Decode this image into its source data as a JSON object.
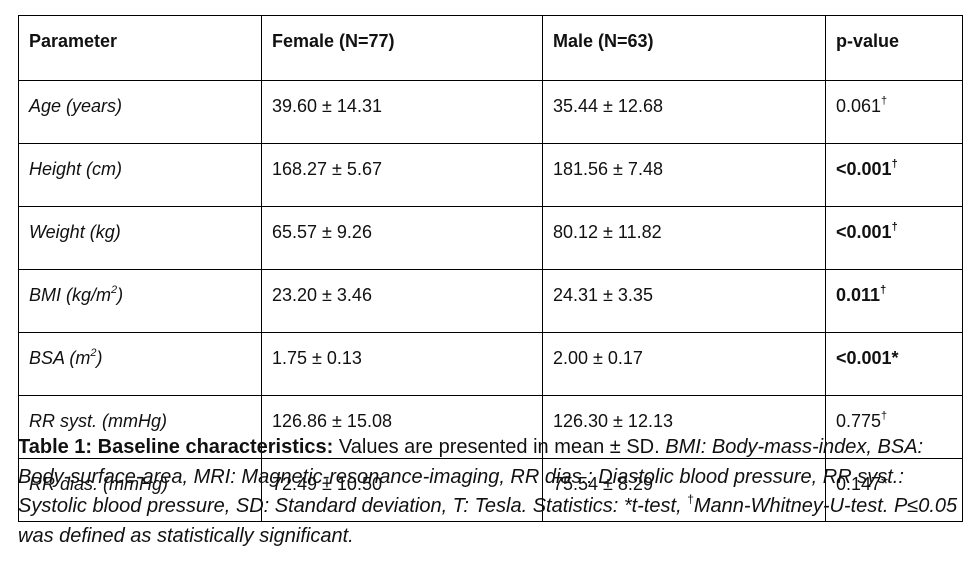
{
  "table": {
    "headers": [
      "Parameter",
      "Female (N=77)",
      "Male (N=63)",
      "p-value"
    ],
    "rows": [
      {
        "param": "Age (years)",
        "param_sup": "",
        "param_end": "",
        "female": "39.60 ± 14.31",
        "male": "35.44 ± 12.68",
        "p": "0.061",
        "p_mark": "†",
        "p_bold": false
      },
      {
        "param": "Height (cm)",
        "param_sup": "",
        "param_end": "",
        "female": "168.27 ± 5.67",
        "male": "181.56 ± 7.48",
        "p": "<0.001",
        "p_mark": "†",
        "p_bold": true
      },
      {
        "param": "Weight (kg)",
        "param_sup": "",
        "param_end": "",
        "female": "65.57 ± 9.26",
        "male": "80.12 ± 11.82",
        "p": "<0.001",
        "p_mark": "†",
        "p_bold": true
      },
      {
        "param": "BMI (kg/m",
        "param_sup": "2",
        "param_end": ")",
        "female": "23.20 ± 3.46",
        "male": "24.31 ± 3.35",
        "p": "0.011",
        "p_mark": "†",
        "p_bold": true
      },
      {
        "param": "BSA (m",
        "param_sup": "2",
        "param_end": ")",
        "female": "1.75 ± 0.13",
        "male": "2.00 ± 0.17",
        "p": "<0.001*",
        "p_mark": "",
        "p_bold": true
      },
      {
        "param": "RR syst. (mmHg)",
        "param_sup": "",
        "param_end": "",
        "female": "126.86 ± 15.08",
        "male": "126.30 ± 12.13",
        "p": "0.775",
        "p_mark": "†",
        "p_bold": false
      },
      {
        "param": "RR dias. (mmHg)",
        "param_sup": "",
        "param_end": "",
        "female": "72.49 ± 10.50",
        "male": "75.54 ± 8.29",
        "p": "0.147*",
        "p_mark": "",
        "p_bold": false
      }
    ]
  },
  "caption": {
    "lead": "Table 1: Baseline characteristics:",
    "normal": " Values are presented in mean ± SD. ",
    "italic_1": "BMI: Body-mass-index, BSA: Body-surface-area, MRI: Magnetic-resonance-imaging, RR dias.: Diastolic blood pressure, RR syst.: Systolic blood pressure, SD: Standard deviation, T: Tesla. Statistics: *t-test, ",
    "dagger": "†",
    "italic_2": "Mann-Whitney-U-test. P≤0.05 was defined as statistically significant."
  }
}
